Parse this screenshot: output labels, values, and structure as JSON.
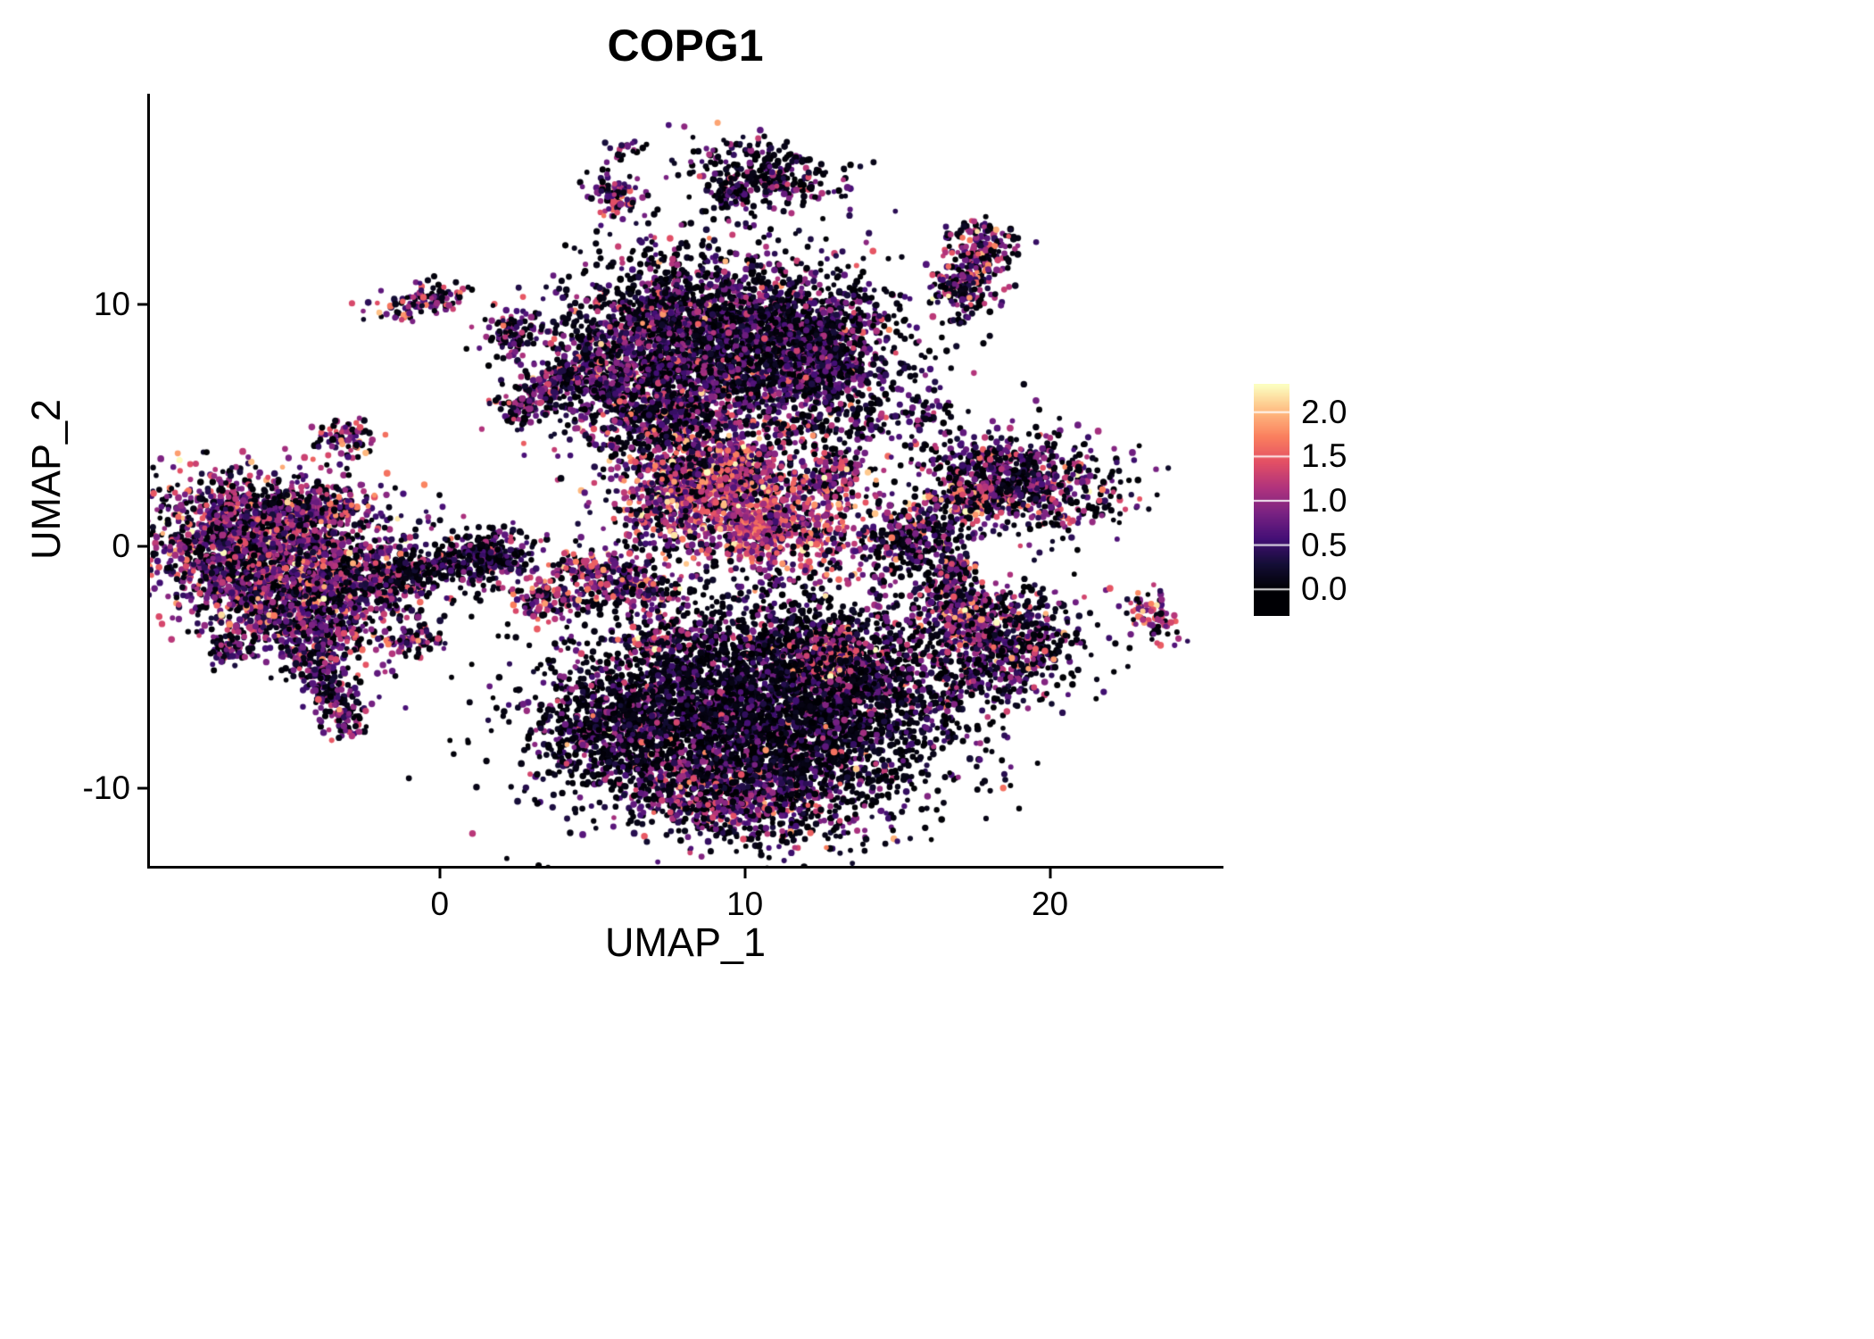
{
  "title": "COPG1",
  "chart_data": {
    "type": "scatter",
    "title": "COPG1",
    "xlabel": "UMAP_1",
    "ylabel": "UMAP_2",
    "xlim": [
      -9.5,
      25.6
    ],
    "ylim": [
      -13.2,
      18.7
    ],
    "grid": false,
    "panel_background": "#ffffff",
    "point_color_mapping": "expression level, magma colormap",
    "x_ticks": [
      {
        "value": 0,
        "label": "0"
      },
      {
        "value": 10,
        "label": "10"
      },
      {
        "value": 20,
        "label": "20"
      }
    ],
    "y_ticks": [
      {
        "value": 10,
        "label": "10"
      },
      {
        "value": 0,
        "label": "0"
      },
      {
        "value": -10,
        "label": "-10"
      }
    ],
    "legend": {
      "position": "right",
      "ticks": [
        "2.0",
        "1.5",
        "1.0",
        "0.5",
        "0.0"
      ],
      "tick_values": [
        2.0,
        1.5,
        1.0,
        0.5,
        0.0
      ],
      "range": [
        0,
        2.3
      ],
      "colormap": "magma",
      "colormap_stops": [
        [
          0.0,
          0,
          0,
          4
        ],
        [
          0.125,
          20,
          14,
          54
        ],
        [
          0.25,
          68,
          15,
          118
        ],
        [
          0.375,
          121,
          34,
          130
        ],
        [
          0.5,
          176,
          51,
          125
        ],
        [
          0.625,
          227,
          79,
          101
        ],
        [
          0.75,
          250,
          127,
          94
        ],
        [
          0.875,
          254,
          187,
          128
        ],
        [
          1.0,
          252,
          253,
          191
        ]
      ]
    },
    "clusters": [
      {
        "name": "left-main",
        "shape": "gauss",
        "cx": -5.4,
        "cy": -0.4,
        "rx": 2.1,
        "ry": 1.55,
        "rot": -10,
        "n": 2200,
        "mean": 0.85,
        "sd": 0.5,
        "zero": 0.25
      },
      {
        "name": "left-lower",
        "shape": "gauss",
        "cx": -4.6,
        "cy": -2.9,
        "rx": 1.4,
        "ry": 0.9,
        "rot": -20,
        "n": 600,
        "mean": 0.8,
        "sd": 0.5,
        "zero": 0.25
      },
      {
        "name": "left-tail",
        "shape": "line",
        "x1": -4.3,
        "y1": -4.3,
        "x2": -2.9,
        "y2": -7.7,
        "w": 0.4,
        "n": 260,
        "mean": 0.7,
        "sd": 0.45,
        "zero": 0.3
      },
      {
        "name": "left-top-edge",
        "shape": "gauss",
        "cx": -5.2,
        "cy": 1.6,
        "rx": 1.6,
        "ry": 0.5,
        "rot": 5,
        "n": 300,
        "mean": 0.7,
        "sd": 0.5,
        "zero": 0.35
      },
      {
        "name": "left-right-ext",
        "shape": "gauss",
        "cx": -2.0,
        "cy": -1.4,
        "rx": 1.0,
        "ry": 0.7,
        "rot": 0,
        "n": 300,
        "mean": 0.6,
        "sd": 0.5,
        "zero": 0.4
      },
      {
        "name": "left-bridge",
        "shape": "line",
        "x1": -1.2,
        "y1": -1.2,
        "x2": 0.8,
        "y2": -0.6,
        "w": 0.3,
        "n": 130,
        "mean": 0.4,
        "sd": 0.4,
        "zero": 0.5
      },
      {
        "name": "center-small-blob",
        "shape": "gauss",
        "cx": 1.4,
        "cy": -0.4,
        "rx": 0.75,
        "ry": 0.55,
        "rot": 20,
        "n": 260,
        "mean": 0.45,
        "sd": 0.4,
        "zero": 0.45
      },
      {
        "name": "left-isolated",
        "shape": "gauss",
        "cx": -6.9,
        "cy": -4.2,
        "rx": 0.45,
        "ry": 0.3,
        "rot": 0,
        "n": 60,
        "mean": 0.8,
        "sd": 0.5,
        "zero": 0.3
      },
      {
        "name": "left-small-top",
        "shape": "gauss",
        "cx": -3.1,
        "cy": 4.4,
        "rx": 0.45,
        "ry": 0.45,
        "rot": 0,
        "n": 80,
        "mean": 0.9,
        "sd": 0.55,
        "zero": 0.25
      },
      {
        "name": "topleft-pair",
        "shape": "gauss",
        "cx": -0.6,
        "cy": 10.2,
        "rx": 0.75,
        "ry": 0.35,
        "rot": 10,
        "n": 110,
        "mean": 0.9,
        "sd": 0.5,
        "zero": 0.3
      },
      {
        "name": "topleft-2",
        "shape": "gauss",
        "cx": 2.4,
        "cy": 8.7,
        "rx": 0.5,
        "ry": 0.6,
        "rot": -30,
        "n": 100,
        "mean": 0.7,
        "sd": 0.5,
        "zero": 0.35
      },
      {
        "name": "diag-streak",
        "shape": "line",
        "x1": 2.1,
        "y1": 5.3,
        "x2": 4.4,
        "y2": 7.3,
        "w": 0.3,
        "n": 220,
        "mean": 0.7,
        "sd": 0.5,
        "zero": 0.35
      },
      {
        "name": "topmid-main",
        "shape": "gauss",
        "cx": 9.8,
        "cy": 8.6,
        "rx": 2.6,
        "ry": 1.7,
        "rot": -8,
        "n": 3000,
        "mean": 0.55,
        "sd": 0.45,
        "zero": 0.4
      },
      {
        "name": "topmid-left",
        "shape": "gauss",
        "cx": 5.9,
        "cy": 7.0,
        "rx": 1.3,
        "ry": 1.4,
        "rot": 0,
        "n": 800,
        "mean": 0.6,
        "sd": 0.45,
        "zero": 0.35
      },
      {
        "name": "topmid-bottom",
        "shape": "gauss",
        "cx": 7.6,
        "cy": 5.3,
        "rx": 1.3,
        "ry": 0.9,
        "rot": 20,
        "n": 400,
        "mean": 0.8,
        "sd": 0.5,
        "zero": 0.3
      },
      {
        "name": "topmid-below",
        "shape": "gauss",
        "cx": 8.3,
        "cy": 3.9,
        "rx": 1.5,
        "ry": 1.0,
        "rot": 0,
        "n": 260,
        "mean": 0.9,
        "sd": 0.55,
        "zero": 0.3
      },
      {
        "name": "topmid-right",
        "shape": "gauss",
        "cx": 12.6,
        "cy": 7.5,
        "rx": 0.8,
        "ry": 1.2,
        "rot": 0,
        "n": 300,
        "mean": 0.5,
        "sd": 0.4,
        "zero": 0.45
      },
      {
        "name": "mid-main",
        "shape": "gauss",
        "cx": 10.4,
        "cy": 1.1,
        "rx": 2.0,
        "ry": 1.05,
        "rot": -12,
        "n": 1100,
        "mean": 1.15,
        "sd": 0.45,
        "zero": 0.12
      },
      {
        "name": "mid-upper",
        "shape": "gauss",
        "cx": 9.6,
        "cy": 3.1,
        "rx": 0.9,
        "ry": 0.6,
        "rot": 0,
        "n": 280,
        "mean": 1.25,
        "sd": 0.5,
        "zero": 0.1
      },
      {
        "name": "mid-hook",
        "shape": "line",
        "x1": 12.4,
        "y1": 2.2,
        "x2": 13.3,
        "y2": 3.6,
        "w": 0.35,
        "n": 160,
        "mean": 0.9,
        "sd": 0.5,
        "zero": 0.2
      },
      {
        "name": "mid-left",
        "shape": "gauss",
        "cx": 7.6,
        "cy": 2.3,
        "rx": 0.55,
        "ry": 0.45,
        "rot": 0,
        "n": 110,
        "mean": 0.9,
        "sd": 0.5,
        "zero": 0.2
      },
      {
        "name": "mid-sparse",
        "shape": "gauss",
        "cx": 9.0,
        "cy": 2.6,
        "rx": 1.6,
        "ry": 1.1,
        "rot": 0,
        "n": 200,
        "mean": 0.8,
        "sd": 0.5,
        "zero": 0.3
      },
      {
        "name": "small-mid-a",
        "shape": "gauss",
        "cx": 5.0,
        "cy": -1.1,
        "rx": 0.9,
        "ry": 0.55,
        "rot": -25,
        "n": 180,
        "mean": 1.0,
        "sd": 0.5,
        "zero": 0.2
      },
      {
        "name": "small-mid-b",
        "shape": "gauss",
        "cx": 6.6,
        "cy": -1.6,
        "rx": 0.7,
        "ry": 0.6,
        "rot": 0,
        "n": 180,
        "mean": 0.7,
        "sd": 0.5,
        "zero": 0.3
      },
      {
        "name": "small-mid-c",
        "shape": "gauss",
        "cx": 3.3,
        "cy": -2.2,
        "rx": 0.5,
        "ry": 0.45,
        "rot": 0,
        "n": 110,
        "mean": 1.0,
        "sd": 0.5,
        "zero": 0.2
      },
      {
        "name": "tiny-a",
        "shape": "gauss",
        "cx": 6.9,
        "cy": -3.9,
        "rx": 0.3,
        "ry": 0.25,
        "rot": 0,
        "n": 45,
        "mean": 1.0,
        "sd": 0.5,
        "zero": 0.2
      },
      {
        "name": "small-left-b",
        "shape": "gauss",
        "cx": -0.8,
        "cy": -3.9,
        "rx": 0.4,
        "ry": 0.3,
        "rot": 0,
        "n": 70,
        "mean": 0.9,
        "sd": 0.5,
        "zero": 0.25
      },
      {
        "name": "bottom-main",
        "shape": "gauss",
        "cx": 10.2,
        "cy": -7.0,
        "rx": 3.1,
        "ry": 2.1,
        "rot": -5,
        "n": 3600,
        "mean": 0.35,
        "sd": 0.4,
        "zero": 0.55
      },
      {
        "name": "bottom-left-arm",
        "shape": "gauss",
        "cx": 5.8,
        "cy": -7.6,
        "rx": 1.4,
        "ry": 1.2,
        "rot": 10,
        "n": 650,
        "mean": 0.5,
        "sd": 0.5,
        "zero": 0.45
      },
      {
        "name": "bottom-lower",
        "shape": "gauss",
        "cx": 9.6,
        "cy": -10.1,
        "rx": 1.9,
        "ry": 1.1,
        "rot": -8,
        "n": 800,
        "mean": 0.75,
        "sd": 0.5,
        "zero": 0.3
      },
      {
        "name": "bottom-right",
        "shape": "gauss",
        "cx": 13.6,
        "cy": -5.6,
        "rx": 1.6,
        "ry": 1.4,
        "rot": 0,
        "n": 800,
        "mean": 0.45,
        "sd": 0.45,
        "zero": 0.5
      },
      {
        "name": "bottom-pink-streak",
        "shape": "line",
        "x1": 12.3,
        "y1": -5.6,
        "x2": 13.3,
        "y2": -3.6,
        "w": 0.4,
        "n": 220,
        "mean": 1.15,
        "sd": 0.5,
        "zero": 0.15
      },
      {
        "name": "bottom-top-scatter",
        "shape": "gauss",
        "cx": 10.5,
        "cy": -3.8,
        "rx": 2.2,
        "ry": 0.9,
        "rot": 0,
        "n": 350,
        "mean": 0.6,
        "sd": 0.5,
        "zero": 0.4
      },
      {
        "name": "right-small",
        "shape": "gauss",
        "cx": 15.4,
        "cy": 0.2,
        "rx": 1.0,
        "ry": 0.8,
        "rot": 15,
        "n": 300,
        "mean": 0.6,
        "sd": 0.45,
        "zero": 0.4
      },
      {
        "name": "right-upper",
        "shape": "gauss",
        "cx": 18.6,
        "cy": 2.6,
        "rx": 1.8,
        "ry": 1.0,
        "rot": -5,
        "n": 850,
        "mean": 0.7,
        "sd": 0.5,
        "zero": 0.35
      },
      {
        "name": "right-upper-pink",
        "shape": "gauss",
        "cx": 17.6,
        "cy": 1.9,
        "rx": 0.5,
        "ry": 0.4,
        "rot": 0,
        "n": 120,
        "mean": 1.3,
        "sd": 0.45,
        "zero": 0.1
      },
      {
        "name": "right-lower",
        "shape": "gauss",
        "cx": 18.4,
        "cy": -4.3,
        "rx": 1.5,
        "ry": 1.2,
        "rot": 20,
        "n": 700,
        "mean": 0.6,
        "sd": 0.5,
        "zero": 0.35
      },
      {
        "name": "right-lower-pink",
        "shape": "gauss",
        "cx": 17.3,
        "cy": -2.8,
        "rx": 0.7,
        "ry": 0.6,
        "rot": 0,
        "n": 220,
        "mean": 1.1,
        "sd": 0.5,
        "zero": 0.15
      },
      {
        "name": "right-bridge",
        "shape": "line",
        "x1": 16.4,
        "y1": -1.9,
        "x2": 17.2,
        "y2": -0.6,
        "w": 0.3,
        "n": 90,
        "mean": 0.7,
        "sd": 0.5,
        "zero": 0.3
      },
      {
        "name": "far-right",
        "shape": "gauss",
        "cx": 23.4,
        "cy": -2.9,
        "rx": 0.45,
        "ry": 0.55,
        "rot": 0,
        "n": 80,
        "mean": 1.0,
        "sd": 0.5,
        "zero": 0.2
      },
      {
        "name": "topright",
        "shape": "line",
        "x1": 16.9,
        "y1": 10.1,
        "x2": 18.1,
        "y2": 13.2,
        "w": 0.5,
        "n": 330,
        "mean": 0.8,
        "sd": 0.55,
        "zero": 0.3
      },
      {
        "name": "topright-dot",
        "shape": "gauss",
        "cx": 17.0,
        "cy": 9.4,
        "rx": 0.15,
        "ry": 0.15,
        "rot": 0,
        "n": 12,
        "mean": 0.6,
        "sd": 0.4,
        "zero": 0.4
      },
      {
        "name": "top-main",
        "shape": "gauss",
        "cx": 10.8,
        "cy": 15.4,
        "rx": 1.3,
        "ry": 0.7,
        "rot": -15,
        "n": 280,
        "mean": 0.55,
        "sd": 0.5,
        "zero": 0.45
      },
      {
        "name": "top-hook",
        "shape": "line",
        "x1": 9.9,
        "y1": 14.9,
        "x2": 9.2,
        "y2": 14.2,
        "w": 0.25,
        "n": 70,
        "mean": 0.5,
        "sd": 0.4,
        "zero": 0.45
      },
      {
        "name": "top-small-left",
        "shape": "gauss",
        "cx": 5.8,
        "cy": 14.6,
        "rx": 0.4,
        "ry": 0.5,
        "rot": 0,
        "n": 90,
        "mean": 0.8,
        "sd": 0.5,
        "zero": 0.3
      },
      {
        "name": "top-tiny",
        "shape": "gauss",
        "cx": 6.1,
        "cy": 16.4,
        "rx": 0.25,
        "ry": 0.2,
        "rot": 0,
        "n": 20,
        "mean": 0.6,
        "sd": 0.4,
        "zero": 0.4
      },
      {
        "name": "sparse-1",
        "shape": "gauss",
        "cx": 13.8,
        "cy": 5.0,
        "rx": 0.9,
        "ry": 0.7,
        "rot": 0,
        "n": 70,
        "mean": 0.5,
        "sd": 0.45,
        "zero": 0.45
      },
      {
        "name": "sparse-2",
        "shape": "gauss",
        "cx": 15.9,
        "cy": 5.5,
        "rx": 0.5,
        "ry": 0.4,
        "rot": 0,
        "n": 40,
        "mean": 0.7,
        "sd": 0.5,
        "zero": 0.35
      },
      {
        "name": "sparse-3",
        "shape": "uniform",
        "cx": 7.0,
        "cy": 0.7,
        "rx": 1.3,
        "ry": 0.9,
        "n": 80,
        "mean": 0.7,
        "sd": 0.5,
        "zero": 0.35
      },
      {
        "name": "sparse-4",
        "shape": "uniform",
        "cx": 11.5,
        "cy": 4.6,
        "rx": 1.2,
        "ry": 0.8,
        "n": 70,
        "mean": 0.7,
        "sd": 0.5,
        "zero": 0.4
      },
      {
        "name": "stray-1",
        "shape": "uniform",
        "cx": 12.0,
        "cy": -0.5,
        "rx": 1.5,
        "ry": 1.2,
        "n": 30,
        "mean": 0.7,
        "sd": 0.5,
        "zero": 0.4
      },
      {
        "name": "stray-2",
        "shape": "uniform",
        "cx": 15.5,
        "cy": -2.0,
        "rx": 1.2,
        "ry": 1.2,
        "n": 45,
        "mean": 0.6,
        "sd": 0.5,
        "zero": 0.4
      },
      {
        "name": "stray-3",
        "shape": "uniform",
        "cx": 8.2,
        "cy": 12.9,
        "rx": 1.8,
        "ry": 1.2,
        "n": 25,
        "mean": 0.5,
        "sd": 0.5,
        "zero": 0.5
      },
      {
        "name": "stray-4",
        "shape": "uniform",
        "cx": 13.5,
        "cy": 9.9,
        "rx": 1.0,
        "ry": 0.8,
        "n": 22,
        "mean": 0.5,
        "sd": 0.5,
        "zero": 0.5
      },
      {
        "name": "stray-5",
        "shape": "uniform",
        "cx": 2.0,
        "cy": -0.3,
        "rx": 1.3,
        "ry": 0.8,
        "n": 40,
        "mean": 0.5,
        "sd": 0.4,
        "zero": 0.5
      }
    ]
  }
}
